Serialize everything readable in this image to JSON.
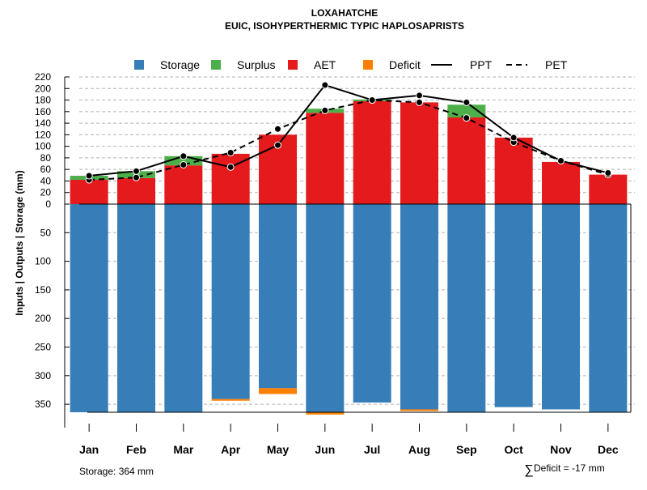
{
  "chart_data": {
    "type": "bar",
    "title": "LOXAHATCHE",
    "subtitle": "EUIC, ISOHYPERTHERMIC TYPIC HAPLOSAPRISTS",
    "ylabel": "Inputs | Outputs | Storage     (mm)",
    "categories": [
      "Jan",
      "Feb",
      "Mar",
      "Apr",
      "May",
      "Jun",
      "Jul",
      "Aug",
      "Sep",
      "Oct",
      "Nov",
      "Dec"
    ],
    "upper_ylim": [
      0,
      220
    ],
    "upper_ticks": [
      0,
      20,
      40,
      60,
      80,
      100,
      120,
      140,
      160,
      180,
      200,
      220
    ],
    "lower_ylim": [
      0,
      364
    ],
    "lower_ticks": [
      50,
      100,
      150,
      200,
      250,
      300,
      350
    ],
    "legend": [
      {
        "label": "Storage",
        "kind": "box",
        "color": "#377eb8"
      },
      {
        "label": "Surplus",
        "kind": "box",
        "color": "#4daf4a"
      },
      {
        "label": "AET",
        "kind": "box",
        "color": "#e41a1c"
      },
      {
        "label": "Deficit",
        "kind": "box",
        "color": "#ff7f00"
      },
      {
        "label": "PPT",
        "kind": "solid",
        "color": "#000000"
      },
      {
        "label": "PET",
        "kind": "dashed",
        "color": "#000000"
      }
    ],
    "series": [
      {
        "name": "AET",
        "values": [
          42,
          45,
          67,
          87,
          120,
          158,
          178,
          176,
          150,
          115,
          73,
          51
        ]
      },
      {
        "name": "Surplus",
        "values": [
          7,
          12,
          16,
          0,
          0,
          7,
          3,
          0,
          22,
          0,
          0,
          0
        ]
      },
      {
        "name": "PPT",
        "values": [
          49,
          57,
          83,
          64,
          102,
          206,
          180,
          188,
          176,
          115,
          75,
          54
        ]
      },
      {
        "name": "PET",
        "values": [
          42,
          46,
          68,
          89,
          130,
          162,
          180,
          176,
          149,
          107,
          75,
          51
        ]
      },
      {
        "name": "Storage",
        "values": [
          364,
          364,
          364,
          341,
          322,
          364,
          347,
          359,
          364,
          355,
          359,
          364
        ]
      },
      {
        "name": "Deficit",
        "values": [
          0,
          0,
          0,
          2,
          10,
          4,
          0,
          2,
          0,
          0,
          0,
          0
        ]
      }
    ],
    "colors": {
      "storage": "#377eb8",
      "surplus": "#4daf4a",
      "aet": "#e41a1c",
      "deficit": "#ff7f00",
      "line": "#000000",
      "grid": "#b3b3b3"
    }
  },
  "footer": {
    "storage_text": "Storage: 364 mm",
    "deficit_symbol": "∑",
    "deficit_text": "Deficit = -17 mm"
  }
}
